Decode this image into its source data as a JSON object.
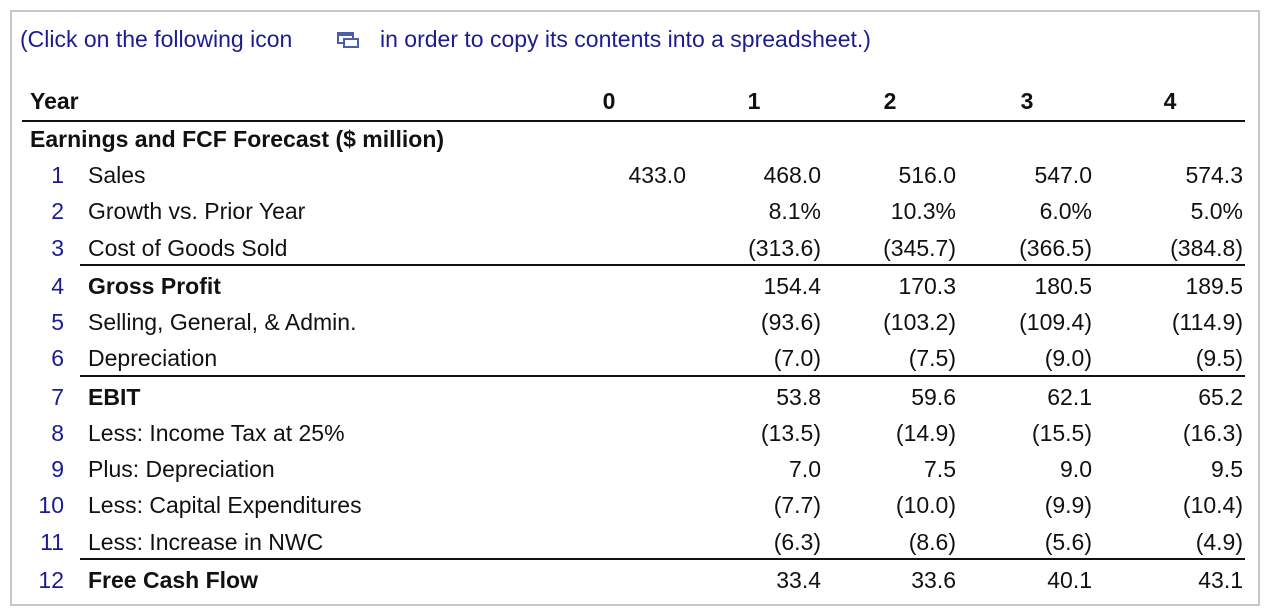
{
  "instruction": {
    "before": "(Click on the following icon",
    "after": "in order to copy its contents into a spreadsheet.)"
  },
  "table": {
    "header": {
      "label": "Year",
      "columns": [
        "0",
        "1",
        "2",
        "3",
        "4"
      ]
    },
    "section": "Earnings and FCF Forecast ($ million)",
    "rows": [
      {
        "number": 1,
        "label": "Sales",
        "cells": [
          "433.0",
          "468.0",
          "516.0",
          "547.0",
          "574.3"
        ]
      },
      {
        "number": 2,
        "label": "Growth vs. Prior Year",
        "cells": [
          null,
          "8.1%",
          "10.3%",
          "6.0%",
          "5.0%"
        ]
      },
      {
        "number": 3,
        "label": "Cost of Goods Sold",
        "cells": [
          null,
          "(313.6)",
          "(345.7)",
          "(366.5)",
          "(384.8)"
        ]
      },
      {
        "number": 4,
        "label": "Gross Profit",
        "bold": true,
        "rule_above": true,
        "cells": [
          null,
          "154.4",
          "170.3",
          "180.5",
          "189.5"
        ]
      },
      {
        "number": 5,
        "label": "Selling, General, & Admin.",
        "cells": [
          null,
          "(93.6)",
          "(103.2)",
          "(109.4)",
          "(114.9)"
        ]
      },
      {
        "number": 6,
        "label": "Depreciation",
        "cells": [
          null,
          "(7.0)",
          "(7.5)",
          "(9.0)",
          "(9.5)"
        ]
      },
      {
        "number": 7,
        "label": "EBIT",
        "bold": true,
        "rule_above": true,
        "cells": [
          null,
          "53.8",
          "59.6",
          "62.1",
          "65.2"
        ]
      },
      {
        "number": 8,
        "label": "Less: Income Tax at 25%",
        "cells": [
          null,
          "(13.5)",
          "(14.9)",
          "(15.5)",
          "(16.3)"
        ]
      },
      {
        "number": 9,
        "label": "Plus: Depreciation",
        "cells": [
          null,
          "7.0",
          "7.5",
          "9.0",
          "9.5"
        ]
      },
      {
        "number": 10,
        "label": "Less: Capital Expenditures",
        "cells": [
          null,
          "(7.7)",
          "(10.0)",
          "(9.9)",
          "(10.4)"
        ]
      },
      {
        "number": 11,
        "label": "Less: Increase in NWC",
        "cells": [
          null,
          "(6.3)",
          "(8.6)",
          "(5.6)",
          "(4.9)"
        ]
      },
      {
        "number": 12,
        "label": "Free Cash Flow",
        "bold": true,
        "rule_above": true,
        "cells": [
          null,
          "33.4",
          "33.6",
          "40.1",
          "43.1"
        ]
      }
    ]
  }
}
